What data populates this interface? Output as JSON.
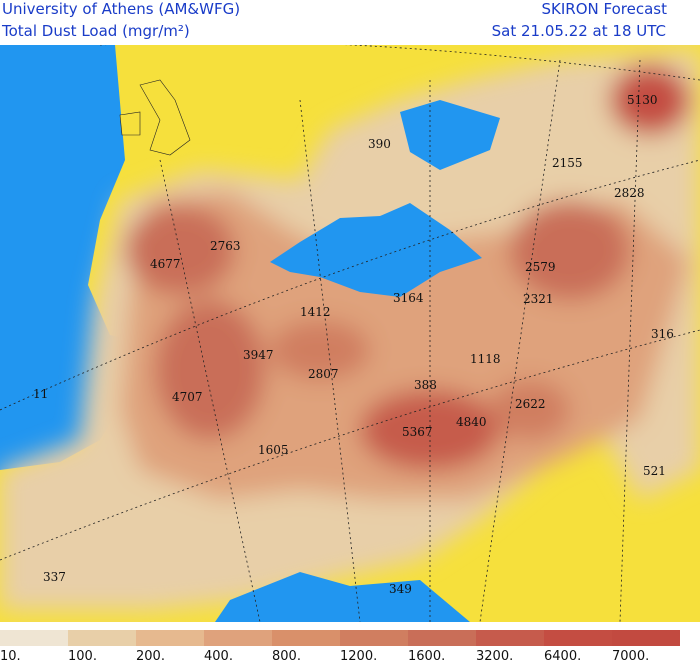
{
  "header": {
    "left_line1": "University of Athens (AM&WFG)",
    "left_line2": "Total Dust Load (mgr/m²)",
    "right_line1": "SKIRON Forecast",
    "right_line2": "Sat 21.05.22 at 18 UTC"
  },
  "points": [
    "5130",
    "390",
    "2155",
    "2828",
    "2763",
    "4677",
    "2579",
    "3164",
    "2321",
    "1412",
    "316",
    "1118",
    "3947",
    "2807",
    "388",
    "11",
    "4707",
    "2622",
    "5367",
    "4840",
    "1605",
    "521",
    "337",
    "349"
  ],
  "legend": {
    "labels": [
      "10.",
      "100.",
      "200.",
      "400.",
      "800.",
      "1200.",
      "1600.",
      "3200.",
      "6400.",
      "7000."
    ],
    "colors": [
      "#efe5d3",
      "#e8cfa8",
      "#e6b98f",
      "#dfa27c",
      "#d9906a",
      "#d07e60",
      "#c96e58",
      "#c65b4c",
      "#c44d42",
      "#c24a40"
    ]
  }
}
